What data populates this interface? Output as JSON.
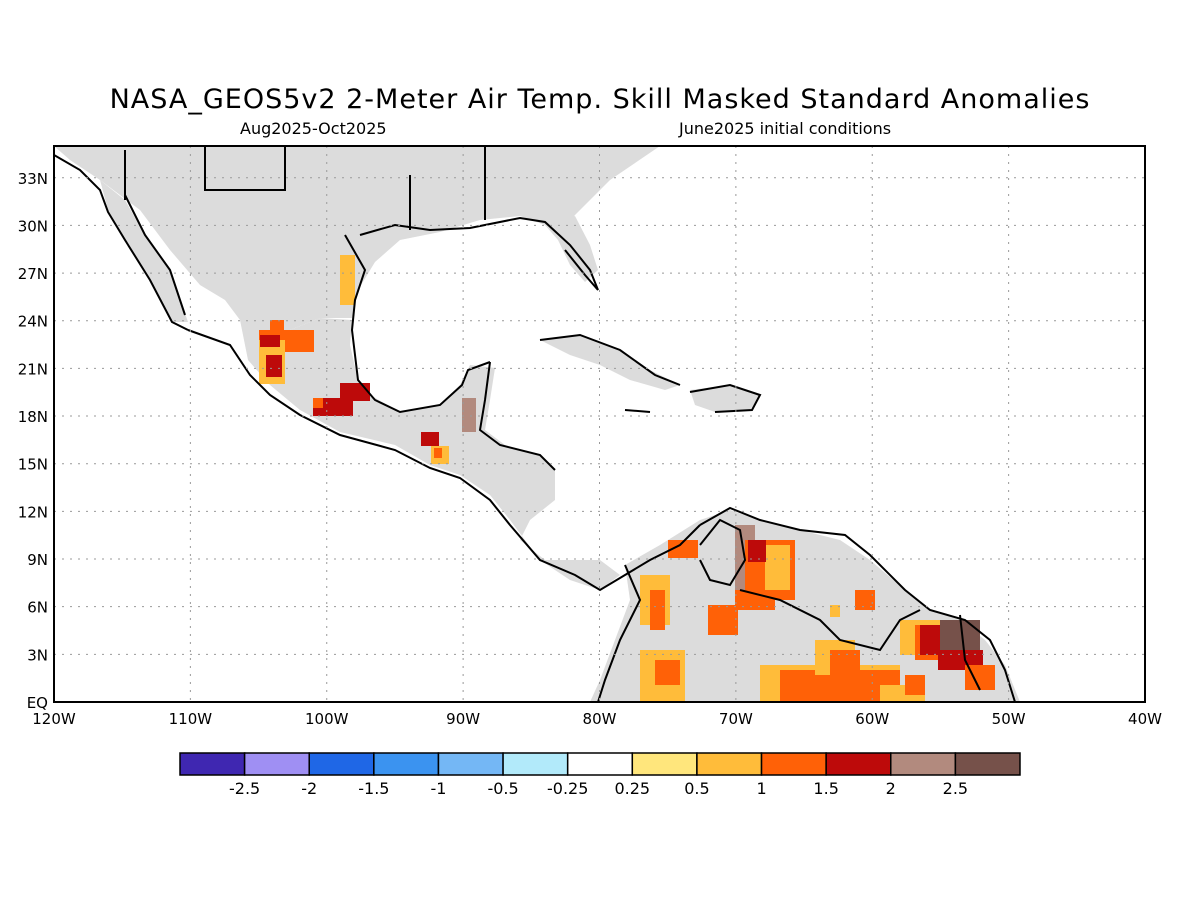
{
  "title": "NASA_GEOS5v2 2-Meter Air Temp. Skill Masked Standard Anomalies",
  "period": "Aug2025-Oct2025",
  "initial_conditions": "June2025 initial conditions",
  "map": {
    "lon_range": [
      -120,
      -40
    ],
    "lat_range": [
      0,
      35
    ],
    "grid": true,
    "lat_labels": [
      "33N",
      "30N",
      "27N",
      "24N",
      "21N",
      "18N",
      "15N",
      "12N",
      "9N",
      "6N",
      "3N",
      "EQ"
    ],
    "lon_labels": [
      "120W",
      "110W",
      "100W",
      "90W",
      "80W",
      "70W",
      "60W",
      "50W",
      "40W"
    ],
    "masked_color": "#dcdcdc",
    "coast_color": "#000000"
  },
  "colorbar": {
    "colors": [
      "#3f27b1",
      "#9f8ff3",
      "#1f67e6",
      "#3b93f0",
      "#74b7f5",
      "#b2eafa",
      "#ffffff",
      "#ffe67c",
      "#ffbc3a",
      "#ff6107",
      "#bd0a0a",
      "#b28a7e",
      "#76514a"
    ],
    "labels": [
      "-2.5",
      "-2",
      "-1.5",
      "-1",
      "-0.5",
      "-0.25",
      "0.25",
      "0.5",
      "1",
      "1.5",
      "2",
      "2.5"
    ]
  }
}
